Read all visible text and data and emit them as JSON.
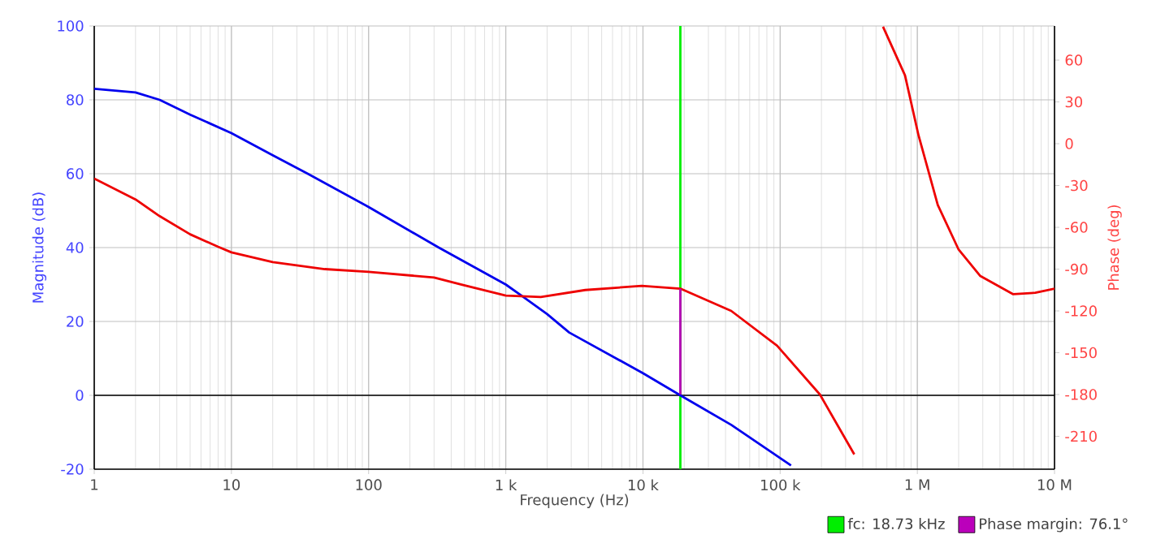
{
  "chart_data": {
    "type": "line",
    "xlabel": "Frequency (Hz)",
    "ylabel": "Magnitude (dB)",
    "y2label": "Phase (deg)",
    "log": "x",
    "grid": true,
    "legend": "bottom right",
    "xlim": [
      1,
      10000000
    ],
    "ylim": [
      -20,
      100
    ],
    "y2lim": [
      -233.6,
      84.5
    ],
    "xticks": [
      1,
      10,
      100,
      {
        "value": 1000,
        "label": "1 k"
      },
      {
        "value": 10000,
        "label": "10 k"
      },
      {
        "value": 100000,
        "label": "100 k"
      },
      {
        "value": 1000000,
        "label": "1 M"
      },
      {
        "value": 10000000,
        "label": "10 M"
      }
    ],
    "yticks": [
      -20,
      0,
      20,
      40,
      60,
      80,
      100
    ],
    "y2ticks": [
      -210,
      -180,
      -150,
      -120,
      -90,
      -60,
      -30,
      0,
      30,
      60
    ],
    "ref_lines": [
      {
        "axis": "y",
        "value": 0,
        "color": "#000000"
      }
    ],
    "series": [
      {
        "name": "fc: 18.73 kHz",
        "color": "#00ee00",
        "x": [
          18730,
          18730
        ],
        "values": [
          -20,
          100
        ]
      },
      {
        "color": "#0000ee",
        "x": [
          1,
          2,
          3,
          5,
          10,
          20,
          36,
          100,
          325,
          1000,
          1300,
          2000,
          2900,
          10000,
          18730,
          44000,
          120000
        ],
        "values": [
          83,
          82,
          80,
          76,
          71,
          65,
          60,
          51,
          40,
          30,
          27,
          22,
          17,
          6,
          0,
          -8,
          -19
        ]
      },
      {
        "color": "#ee0000",
        "axis": "y2",
        "x": [
          1,
          2,
          3,
          5,
          8,
          10,
          20,
          48,
          100,
          300,
          470,
          1000,
          1800,
          3800,
          9800,
          18730,
          44000,
          95000,
          195000,
          347000,
          450000,
          562000,
          813000,
          1020000,
          1410000,
          2000000,
          2880000,
          5000000,
          7240000,
          10000000
        ],
        "values": [
          -25,
          -40,
          -52,
          -65,
          -74,
          -78,
          -85,
          -90,
          -92,
          -96,
          -101,
          -109,
          -110,
          -105,
          -102,
          -104,
          -120,
          -145,
          -180,
          -223,
          null,
          84,
          49,
          6,
          -44,
          -76,
          -95,
          -108,
          -107,
          -104
        ]
      },
      {
        "name": "Phase margin: 76.1°",
        "color": "#bb00bb",
        "axis": "y2",
        "x": [
          18730,
          18730
        ],
        "values": [
          -180,
          -104
        ]
      }
    ]
  }
}
